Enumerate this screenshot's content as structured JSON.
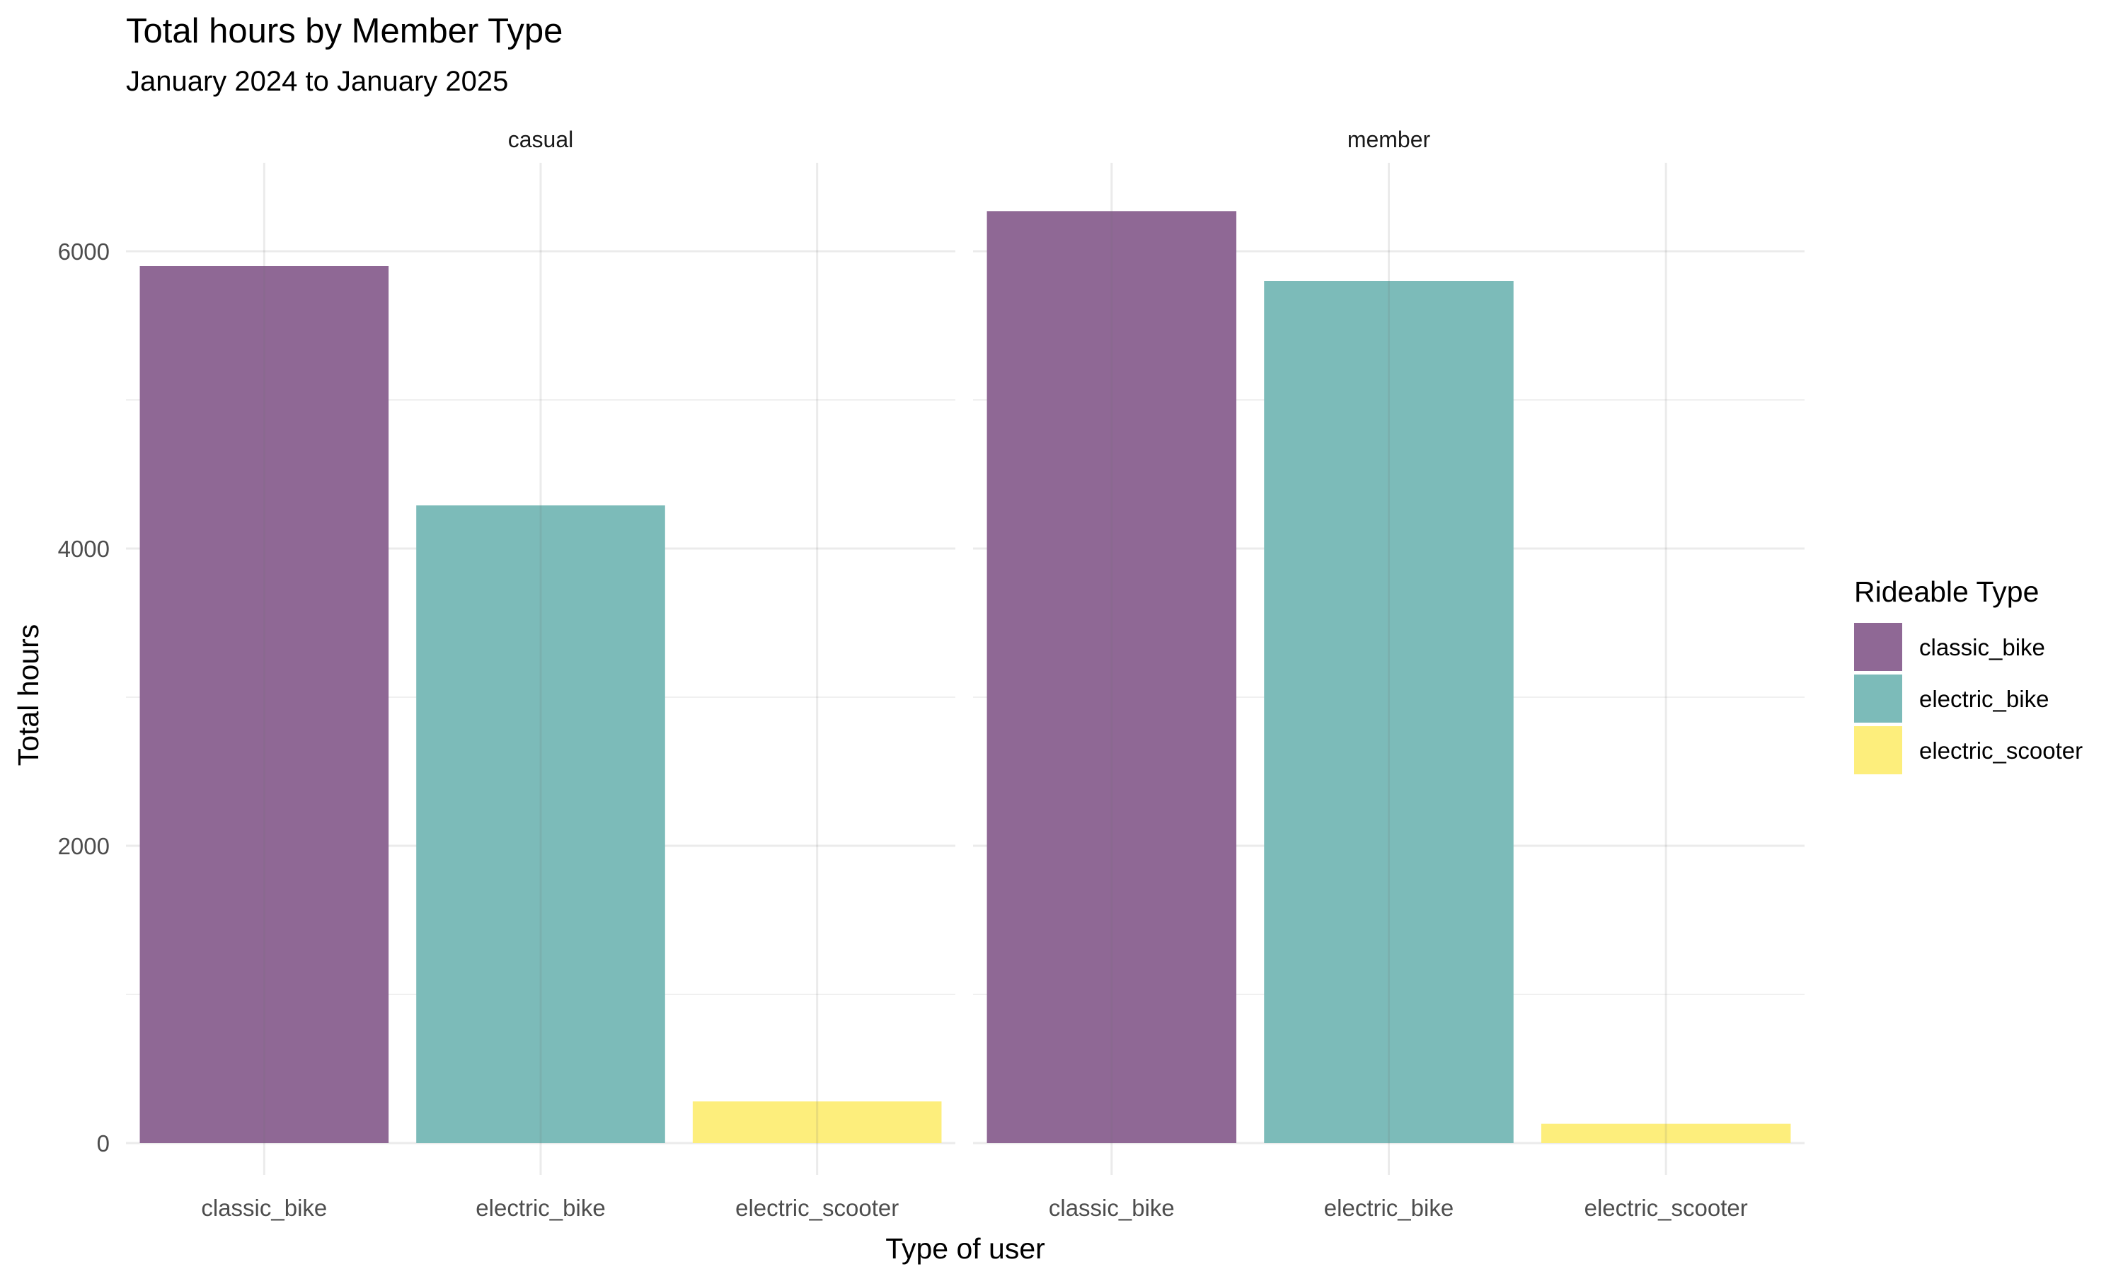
{
  "chart_data": {
    "type": "bar",
    "title": "Total hours by Member Type",
    "subtitle": "January 2024 to January 2025",
    "xlabel": "Type of user",
    "ylabel": "Total hours",
    "ylim": [
      0,
      6600
    ],
    "y_ticks": [
      "0",
      "2000",
      "4000",
      "6000"
    ],
    "y_tick_values": [
      0,
      2000,
      4000,
      6000
    ],
    "y_minor_values": [
      1000,
      3000,
      5000
    ],
    "grid": true,
    "legend": {
      "title": "Rideable Type",
      "placement": "right",
      "entries": [
        "classic_bike",
        "electric_bike",
        "electric_scooter"
      ]
    },
    "colors": {
      "classic_bike": "#8f6895",
      "electric_bike": "#7cbbb9",
      "electric_scooter": "#fdee7c"
    },
    "categories": [
      "classic_bike",
      "electric_bike",
      "electric_scooter"
    ],
    "facets": [
      {
        "name": "casual",
        "values": [
          5900,
          4290,
          280
        ]
      },
      {
        "name": "member",
        "values": [
          6270,
          5800,
          130
        ]
      }
    ]
  }
}
